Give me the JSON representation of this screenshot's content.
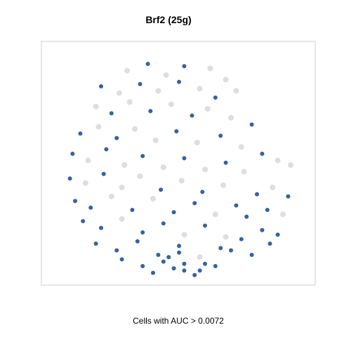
{
  "chart_data": {
    "type": "scatter",
    "title": "Brf2 (25g)",
    "xlabel": "Cells with AUC > 0.0072",
    "ylabel": "",
    "grid": false,
    "legend": "none",
    "colors": {
      "low": "#d3d3d3",
      "high": "#1f5296",
      "frame": "#cccccc"
    },
    "series": [
      {
        "name": "",
        "x": [
          0.3,
          0.38,
          0.45,
          0.52,
          0.62,
          0.68,
          0.2,
          0.27,
          0.35,
          0.42,
          0.5,
          0.58,
          0.64,
          0.72,
          0.18,
          0.24,
          0.31,
          0.39,
          0.47,
          0.55,
          0.61,
          0.7,
          0.78,
          0.12,
          0.19,
          0.26,
          0.33,
          0.41,
          0.49,
          0.57,
          0.66,
          0.74,
          0.09,
          0.15,
          0.22,
          0.29,
          0.36,
          0.44,
          0.52,
          0.6,
          0.68,
          0.08,
          0.14,
          0.21,
          0.28,
          0.35,
          0.43,
          0.51,
          0.59,
          0.67,
          0.75,
          0.82,
          0.88,
          0.93,
          0.1,
          0.16,
          0.24,
          0.32,
          0.4,
          0.48,
          0.56,
          0.64,
          0.72,
          0.8,
          0.86,
          0.92,
          0.13,
          0.2,
          0.28,
          0.36,
          0.44,
          0.52,
          0.6,
          0.68,
          0.76,
          0.84,
          0.9,
          0.18,
          0.26,
          0.34,
          0.42,
          0.5,
          0.58,
          0.66,
          0.74,
          0.82,
          0.88,
          0.28,
          0.36,
          0.44,
          0.52,
          0.6,
          0.7,
          0.78,
          0.85,
          0.4,
          0.48,
          0.56,
          0.64,
          0.46,
          0.52,
          0.58,
          0.5,
          0.55
        ],
        "y": [
          0.92,
          0.95,
          0.9,
          0.94,
          0.93,
          0.88,
          0.85,
          0.82,
          0.86,
          0.83,
          0.87,
          0.84,
          0.8,
          0.83,
          0.76,
          0.73,
          0.78,
          0.74,
          0.77,
          0.72,
          0.75,
          0.71,
          0.68,
          0.64,
          0.67,
          0.62,
          0.66,
          0.61,
          0.65,
          0.6,
          0.63,
          0.58,
          0.55,
          0.52,
          0.57,
          0.5,
          0.54,
          0.49,
          0.53,
          0.48,
          0.51,
          0.44,
          0.42,
          0.46,
          0.4,
          0.45,
          0.39,
          0.43,
          0.38,
          0.41,
          0.47,
          0.55,
          0.52,
          0.5,
          0.34,
          0.31,
          0.36,
          0.3,
          0.35,
          0.29,
          0.33,
          0.28,
          0.32,
          0.37,
          0.4,
          0.36,
          0.25,
          0.22,
          0.26,
          0.2,
          0.24,
          0.19,
          0.23,
          0.18,
          0.27,
          0.3,
          0.28,
          0.15,
          0.12,
          0.16,
          0.1,
          0.14,
          0.09,
          0.13,
          0.17,
          0.21,
          0.19,
          0.08,
          0.05,
          0.07,
          0.03,
          0.06,
          0.12,
          0.1,
          0.15,
          0.02,
          0.04,
          0.01,
          0.05,
          0.09,
          0.06,
          0.03,
          0.11,
          0.07
        ],
        "auc_high": [
          0,
          1,
          0,
          1,
          0,
          0,
          1,
          0,
          1,
          0,
          1,
          0,
          1,
          0,
          0,
          1,
          0,
          1,
          0,
          1,
          0,
          0,
          1,
          1,
          0,
          1,
          0,
          0,
          1,
          0,
          1,
          0,
          1,
          0,
          1,
          0,
          1,
          0,
          1,
          0,
          1,
          1,
          0,
          1,
          0,
          0,
          1,
          0,
          1,
          0,
          0,
          1,
          0,
          0,
          1,
          1,
          0,
          1,
          0,
          1,
          1,
          0,
          1,
          1,
          0,
          1,
          1,
          1,
          0,
          1,
          1,
          0,
          1,
          0,
          1,
          1,
          0,
          1,
          1,
          1,
          1,
          1,
          0,
          1,
          1,
          1,
          1,
          1,
          1,
          1,
          1,
          1,
          1,
          1,
          1,
          1,
          1,
          1,
          1,
          1,
          1,
          1,
          1
        ]
      }
    ]
  }
}
